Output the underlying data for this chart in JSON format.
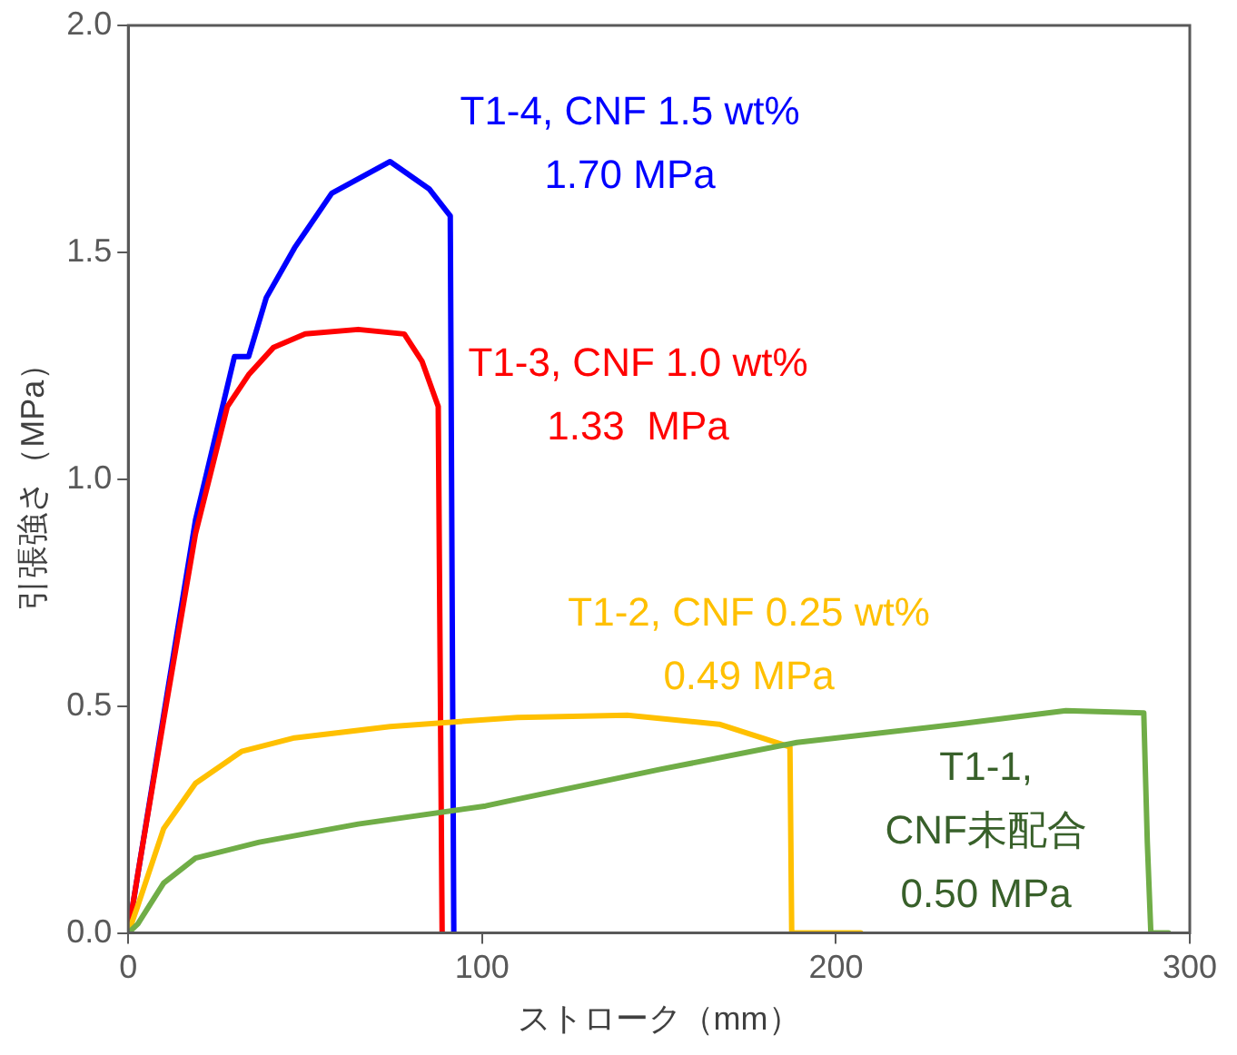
{
  "chart_data": {
    "type": "line",
    "xlabel": "ストローク（mm）",
    "ylabel": "引張強さ（MPa）",
    "xlim": [
      0,
      300
    ],
    "xticks": [
      0,
      100,
      200,
      300
    ],
    "ylim": [
      0,
      2
    ],
    "yticks": [
      {
        "value": 0,
        "label": "0.0"
      },
      {
        "value": 0.5,
        "label": "0.5"
      },
      {
        "value": 1,
        "label": "1.0"
      },
      {
        "value": 1.5,
        "label": "1.5"
      },
      {
        "value": 2,
        "label": "2.0"
      }
    ],
    "grid": false,
    "legend": false,
    "marker": "none",
    "line_style": "solid",
    "series": [
      {
        "color": "#70ad47",
        "x": [
          0,
          2.7,
          10,
          19,
          37,
          65,
          101,
          107,
          150,
          189,
          234,
          265,
          287,
          288,
          289,
          294
        ],
        "values": [
          0,
          0.02,
          0.11,
          0.165,
          0.2,
          0.24,
          0.28,
          0.29,
          0.36,
          0.42,
          0.46,
          0.49,
          0.485,
          0.2,
          0,
          0
        ]
      },
      {
        "color": "#ffc000",
        "x": [
          0,
          2.7,
          10,
          19,
          32,
          47,
          74,
          110,
          141,
          167,
          187,
          187.5,
          207
        ],
        "values": [
          0,
          0.06,
          0.23,
          0.33,
          0.4,
          0.43,
          0.455,
          0.475,
          0.48,
          0.46,
          0.41,
          0,
          0
        ]
      },
      {
        "color": "#ff0000",
        "x": [
          0,
          2.7,
          10,
          19,
          28,
          34,
          41,
          50,
          65,
          78,
          83,
          87.6,
          88.7
        ],
        "values": [
          0,
          0.13,
          0.47,
          0.88,
          1.16,
          1.23,
          1.29,
          1.32,
          1.33,
          1.32,
          1.26,
          1.16,
          0
        ]
      },
      {
        "color": "#0000ff",
        "x": [
          0,
          10,
          19,
          30,
          34,
          39,
          47,
          57.5,
          74,
          85,
          91,
          92
        ],
        "values": [
          0,
          0.48,
          0.91,
          1.27,
          1.27,
          1.4,
          1.51,
          1.63,
          1.7,
          1.64,
          1.58,
          0
        ]
      }
    ],
    "annotations": [
      "T1-1,\nCNF未配合\n0.50 MPa",
      "T1-2, CNF 0.25 wt%\n0.49 MPa",
      "T1-3, CNF 1.0 wt%\n1.33  MPa",
      "T1-4, CNF 1.5 wt%\n1.70 MPa"
    ]
  }
}
